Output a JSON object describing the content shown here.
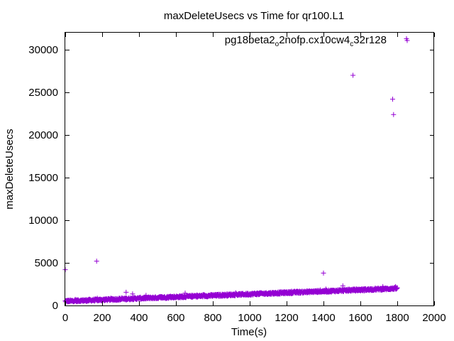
{
  "chart_data": {
    "type": "scatter",
    "title": "maxDeleteUsecs vs Time for qr100.L1",
    "xlabel": "Time(s)",
    "ylabel": "maxDeleteUsecs",
    "xlim": [
      0,
      2000
    ],
    "ylim": [
      0,
      32000
    ],
    "xticks": [
      0,
      200,
      400,
      600,
      800,
      1000,
      1200,
      1400,
      1600,
      1800,
      2000
    ],
    "yticks": [
      0,
      5000,
      10000,
      15000,
      20000,
      25000,
      30000
    ],
    "xtick_labels": [
      "0",
      "200",
      "400",
      "600",
      "800",
      "1000",
      "1200",
      "1400",
      "1600",
      "1800",
      "2000"
    ],
    "ytick_labels": [
      "0",
      "5000",
      "10000",
      "15000",
      "20000",
      "25000",
      "30000"
    ],
    "grid": false,
    "legend_position": "top-right",
    "marker": "plus",
    "series": [
      {
        "name": "pg18beta2_o2nofp.cx10cw4_c32r128",
        "legend_parts": [
          {
            "text": "pg18beta2",
            "sub": false
          },
          {
            "text": "o",
            "sub": true
          },
          {
            "text": "2nofp.cx10cw4",
            "sub": false
          },
          {
            "text": "c",
            "sub": true
          },
          {
            "text": "32r128",
            "sub": false
          }
        ],
        "color": "#9400d3",
        "dense_band": {
          "x_start": 0,
          "x_end": 1800,
          "x_step": 3,
          "y_start": 500,
          "y_end": 2000,
          "spread": 250
        },
        "outliers": [
          {
            "x": 0,
            "y": 4200
          },
          {
            "x": 170,
            "y": 5200
          },
          {
            "x": 330,
            "y": 1550
          },
          {
            "x": 365,
            "y": 1350
          },
          {
            "x": 650,
            "y": 1450
          },
          {
            "x": 1400,
            "y": 3800
          },
          {
            "x": 1505,
            "y": 2300
          },
          {
            "x": 1560,
            "y": 27000
          },
          {
            "x": 1775,
            "y": 24200
          },
          {
            "x": 1780,
            "y": 22400
          },
          {
            "x": 1850,
            "y": 31300
          }
        ]
      }
    ]
  }
}
